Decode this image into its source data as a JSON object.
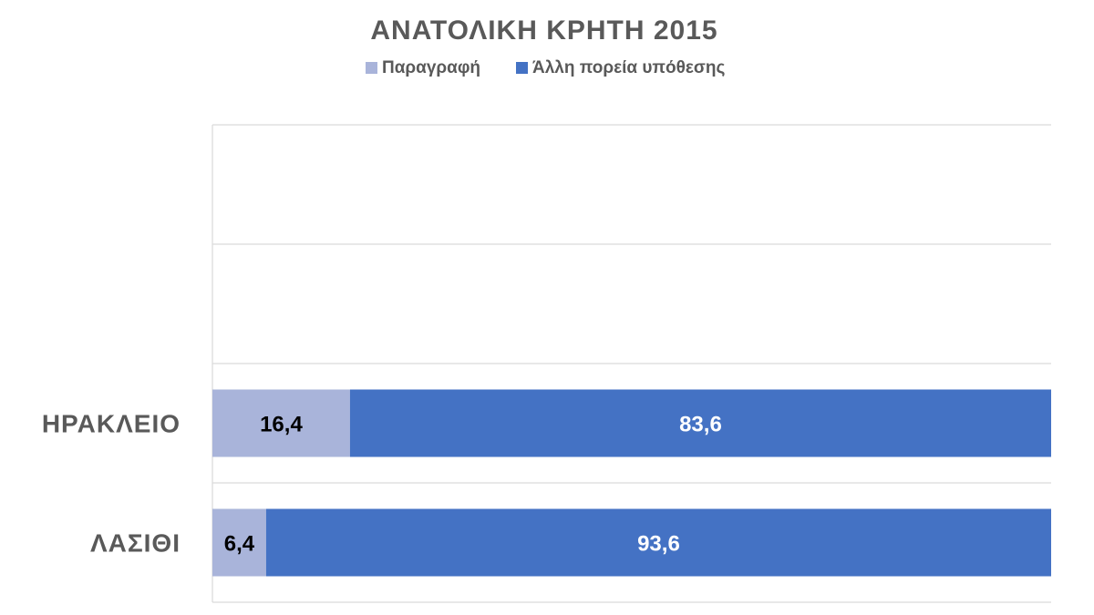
{
  "chart_data": {
    "type": "bar",
    "orientation": "horizontal",
    "stacked": true,
    "percent_stacked": true,
    "title": "ΑΝΑΤΟΛΙΚΗ ΚΡΗΤΗ 2015",
    "categories": [
      "ΗΡΑΚΛΕΙΟ",
      "ΛΑΣΙΘΙ"
    ],
    "series": [
      {
        "name": "Παραγραφή",
        "values": [
          16.4,
          6.4
        ],
        "labels": [
          "16,4",
          "6,4"
        ],
        "color": "#A9B4DA",
        "label_color": "#000000"
      },
      {
        "name": "Άλλη πορεία υπόθεσης",
        "values": [
          83.6,
          93.6
        ],
        "labels": [
          "83,6",
          "93,6"
        ],
        "color": "#4472C4",
        "label_color": "#FFFFFF"
      }
    ],
    "xlim": [
      0,
      100
    ],
    "grid": true,
    "legend_position": "top",
    "colors": {
      "title": "#595959",
      "legend_text": "#595959",
      "category_text": "#595959",
      "gridline": "#D9D9D9"
    }
  }
}
